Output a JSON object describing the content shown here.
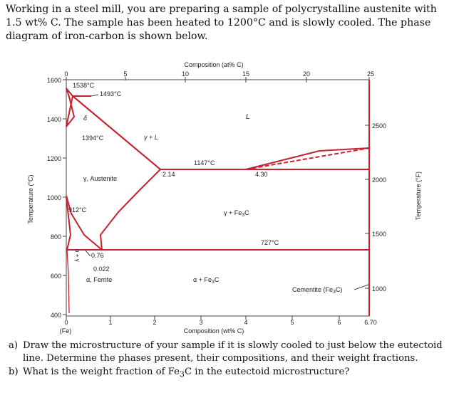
{
  "problem": {
    "intro": "Working in a steel mill, you are preparing a sample of polycrystalline austenite with 1.5 wt% C. The sample has been heated to 1200°C and is slowly cooled. The phase diagram of iron-carbon is shown below.",
    "question_a_label": "a)",
    "question_a": "Draw the microstructure of your sample if it is slowly cooled to just below the eutectoid line. Determine the phases present, their compositions, and their weight fractions.",
    "question_b_label": "b)",
    "question_b_pre": "What is the weight fraction of Fe",
    "question_b_sub": "3",
    "question_b_post": "C in the eutectoid microstructure?"
  },
  "diagram": {
    "top_axis_label": "Composition (at% C)",
    "top_ticks": [
      "0",
      "5",
      "10",
      "15",
      "20",
      "25"
    ],
    "bottom_axis_label": "Composition (wt% C)",
    "bottom_ticks": [
      "0",
      "1",
      "2",
      "3",
      "4",
      "5",
      "6",
      "6.70"
    ],
    "fe_label": "(Fe)",
    "left_axis_label": "Temperature (°C)",
    "left_ticks": [
      "1600",
      "1400",
      "1200",
      "1000",
      "800",
      "600",
      "400"
    ],
    "right_axis_label": "Temperature (°F)",
    "right_ticks": [
      "2500",
      "2000",
      "1500",
      "1000"
    ],
    "labels": {
      "t1538": "1538°C",
      "t1493": "1493°C",
      "delta": "δ",
      "t1394": "1394°C",
      "gamma_l": "γ + L",
      "liquid": "L",
      "t1147": "1147°C",
      "c214": "2.14",
      "c430": "4.30",
      "austenite": "γ, Austenite",
      "gamma_fe3c": "γ + Fe3C",
      "t912": "912°C",
      "alpha_gamma": "α + γ",
      "t727": "727°C",
      "c076": "0.76",
      "c0022": "0.022",
      "ferrite": "α, Ferrite",
      "alpha_fe3c": "α + Fe3C",
      "cementite": "Cementite (Fe3C)"
    }
  },
  "colors": {
    "phase_line": "#c8202e",
    "axis": "#444444"
  }
}
